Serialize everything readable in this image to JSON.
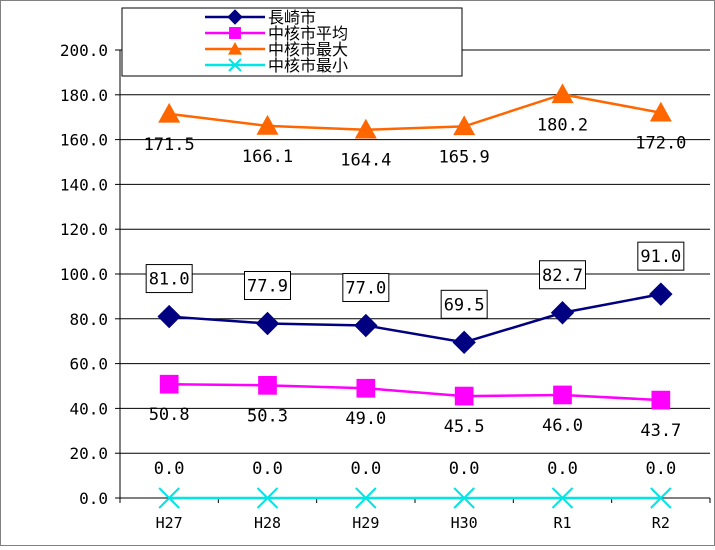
{
  "chart_data": {
    "type": "line",
    "categories": [
      "H27",
      "H28",
      "H29",
      "H30",
      "R1",
      "R2"
    ],
    "ylim": [
      0,
      200
    ],
    "yticks": [
      "0.0",
      "20.0",
      "40.0",
      "60.0",
      "80.0",
      "100.0",
      "120.0",
      "140.0",
      "160.0",
      "180.0",
      "200.0"
    ],
    "grid": true,
    "legend_position": "top-left",
    "series": [
      {
        "name": "長崎市",
        "values": [
          81.0,
          77.9,
          77.0,
          69.5,
          82.7,
          91.0
        ],
        "labels": [
          "81.0",
          "77.9",
          "77.0",
          "69.5",
          "82.7",
          "91.0"
        ],
        "color": "#000080",
        "marker": "diamond",
        "label_position": "above-boxed"
      },
      {
        "name": "中核市平均",
        "values": [
          50.8,
          50.3,
          49.0,
          45.5,
          46.0,
          43.7
        ],
        "labels": [
          "50.8",
          "50.3",
          "49.0",
          "45.5",
          "46.0",
          "43.7"
        ],
        "color": "#ff00ff",
        "marker": "square",
        "label_position": "below"
      },
      {
        "name": "中核市最大",
        "values": [
          171.5,
          166.1,
          164.4,
          165.9,
          180.2,
          172.0
        ],
        "labels": [
          "171.5",
          "166.1",
          "164.4",
          "165.9",
          "180.2",
          "172.0"
        ],
        "color": "#ff6600",
        "marker": "triangle",
        "label_position": "below"
      },
      {
        "name": "中核市最小",
        "values": [
          0.0,
          0.0,
          0.0,
          0.0,
          0.0,
          0.0
        ],
        "labels": [
          "0.0",
          "0.0",
          "0.0",
          "0.0",
          "0.0",
          "0.0"
        ],
        "color": "#00e5e5",
        "marker": "x",
        "label_position": "above"
      }
    ]
  }
}
